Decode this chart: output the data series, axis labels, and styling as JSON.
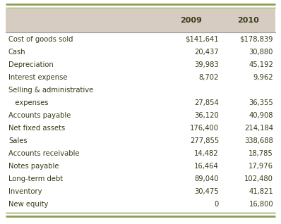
{
  "header_bg": "#d6ccc2",
  "body_bg": "#ffffff",
  "top_border_color": "#8b9e50",
  "bottom_border_color": "#8b9e50",
  "header_line_color": "#999999",
  "col_headers": [
    "",
    "2009",
    "2010"
  ],
  "rows": [
    [
      "Cost of goods sold",
      "$141,641",
      "$178,839"
    ],
    [
      "Cash",
      "20,437",
      "30,880"
    ],
    [
      "Depreciation",
      "39,983",
      "45,192"
    ],
    [
      "Interest expense",
      "8,702",
      "9,962"
    ],
    [
      "Selling & administrative",
      "",
      ""
    ],
    [
      "   expenses",
      "27,854",
      "36,355"
    ],
    [
      "Accounts payable",
      "36,120",
      "40,908"
    ],
    [
      "Net fixed assets",
      "176,400",
      "214,184"
    ],
    [
      "Sales",
      "277,855",
      "338,688"
    ],
    [
      "Accounts receivable",
      "14,482",
      "18,785"
    ],
    [
      "Notes payable",
      "16,464",
      "17,976"
    ],
    [
      "Long-term debt",
      "89,040",
      "102,480"
    ],
    [
      "Inventory",
      "30,475",
      "41,821"
    ],
    [
      "New equity",
      "0",
      "16,800"
    ]
  ],
  "text_color": "#3a3a1a",
  "font_size": 7.2,
  "header_font_size": 8.0
}
